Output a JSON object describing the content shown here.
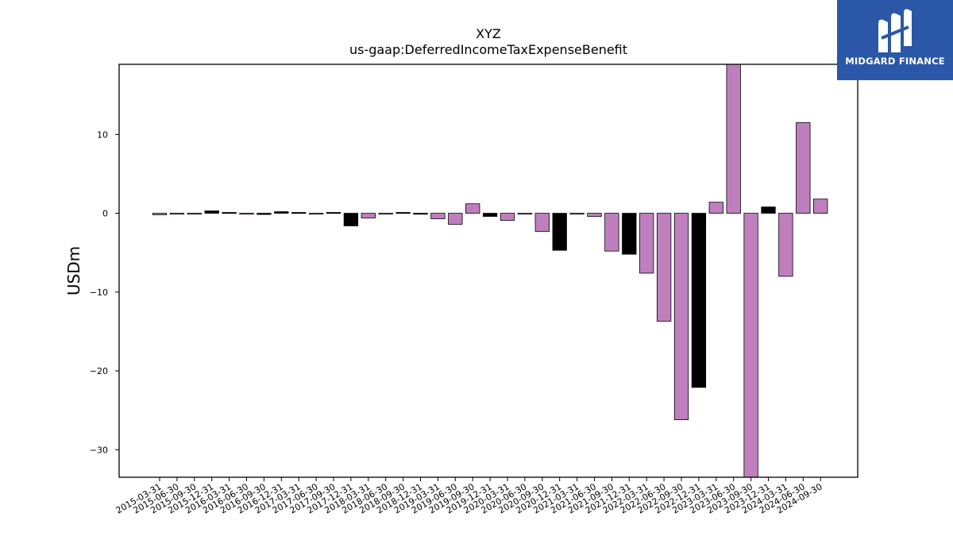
{
  "chart_data": {
    "type": "bar",
    "title": "XYZ",
    "subtitle": "us-gaap:DeferredIncomeTaxExpenseBenefit",
    "xlabel": "",
    "ylabel": "USDm",
    "ylim": [
      -33.5,
      18.9
    ],
    "yticks": [
      -30,
      -20,
      -10,
      0,
      10
    ],
    "ytick_labels": [
      "−30",
      "−20",
      "−10",
      "0",
      "10"
    ],
    "grid": false,
    "colors": {
      "primary": "#bf7fbf",
      "secondary": "#000000"
    },
    "categories": [
      "2015-03-31",
      "2015-06-30",
      "2015-09-30",
      "2015-12-31",
      "2016-03-31",
      "2016-06-30",
      "2016-09-30",
      "2016-12-31",
      "2017-03-31",
      "2017-06-30",
      "2017-09-30",
      "2017-12-31",
      "2018-03-31",
      "2018-06-30",
      "2018-09-30",
      "2018-12-31",
      "2019-03-31",
      "2019-06-30",
      "2019-09-30",
      "2019-12-31",
      "2020-03-31",
      "2020-06-30",
      "2020-09-30",
      "2020-12-31",
      "2021-03-31",
      "2021-06-30",
      "2021-09-30",
      "2021-12-31",
      "2022-03-31",
      "2022-06-30",
      "2022-09-30",
      "2022-12-31",
      "2023-03-31",
      "2023-06-30",
      "2023-09-30",
      "2023-12-31",
      "2024-03-31",
      "2024-06-30",
      "2024-09-30"
    ],
    "values": [
      -0.2,
      -0.05,
      -0.05,
      0.3,
      0.1,
      -0.05,
      -0.15,
      0.2,
      0.1,
      -0.05,
      0.1,
      -1.6,
      -0.6,
      -0.05,
      0.1,
      -0.1,
      -0.7,
      -1.4,
      1.2,
      -0.4,
      -0.9,
      -0.05,
      -2.3,
      -4.7,
      -0.05,
      -0.4,
      -4.8,
      -5.2,
      -7.6,
      -13.7,
      -26.2,
      -22.1,
      1.4,
      18.9,
      -33.5,
      0.8,
      -8.0,
      11.5,
      1.8
    ],
    "bar_color_keys": [
      "primary",
      "primary",
      "primary",
      "secondary",
      "secondary",
      "primary",
      "secondary",
      "secondary",
      "secondary",
      "primary",
      "secondary",
      "secondary",
      "primary",
      "primary",
      "secondary",
      "secondary",
      "primary",
      "primary",
      "primary",
      "secondary",
      "primary",
      "primary",
      "primary",
      "secondary",
      "primary",
      "primary",
      "primary",
      "secondary",
      "primary",
      "primary",
      "primary",
      "secondary",
      "primary",
      "primary",
      "primary",
      "secondary",
      "primary",
      "primary",
      "primary"
    ]
  },
  "logo": {
    "text": "MIDGARD FINANCE",
    "icon": "midgard-logo-icon"
  }
}
